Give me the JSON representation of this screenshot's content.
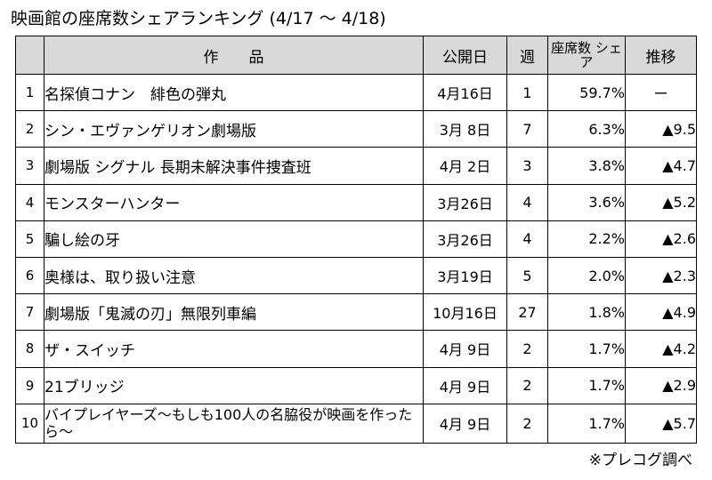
{
  "title": "映画館の座席数シェアランキング (4/17 〜 4/18)",
  "headers": {
    "rank": "",
    "title": "作　　品",
    "date": "公開日",
    "week": "週",
    "share": "座席数 シェア",
    "trend": "推移"
  },
  "rows": [
    {
      "rank": "1",
      "title": "名探偵コナン　緋色の弾丸",
      "date": "4月16日",
      "week": "1",
      "share": "59.7%",
      "trend": "ー"
    },
    {
      "rank": "2",
      "title": "シン・エヴァンゲリオン劇場版",
      "date": "3月 8日",
      "week": "7",
      "share": "6.3%",
      "trend": "▲9.5"
    },
    {
      "rank": "3",
      "title": "劇場版 シグナル 長期未解決事件捜査班",
      "date": "4月 2日",
      "week": "3",
      "share": "3.8%",
      "trend": "▲4.7"
    },
    {
      "rank": "4",
      "title": "モンスターハンター",
      "date": "3月26日",
      "week": "4",
      "share": "3.6%",
      "trend": "▲5.2"
    },
    {
      "rank": "5",
      "title": "騙し絵の牙",
      "date": "3月26日",
      "week": "4",
      "share": "2.2%",
      "trend": "▲2.6"
    },
    {
      "rank": "6",
      "title": "奥様は、取り扱い注意",
      "date": "3月19日",
      "week": "5",
      "share": "2.0%",
      "trend": "▲2.3"
    },
    {
      "rank": "7",
      "title": "劇場版「鬼滅の刃」無限列車編",
      "date": "10月16日",
      "week": "27",
      "share": "1.8%",
      "trend": "▲4.9"
    },
    {
      "rank": "8",
      "title": "ザ・スイッチ",
      "date": "4月 9日",
      "week": "2",
      "share": "1.7%",
      "trend": "▲4.2"
    },
    {
      "rank": "9",
      "title": "21ブリッジ",
      "date": "4月 9日",
      "week": "2",
      "share": "1.7%",
      "trend": "▲2.9"
    },
    {
      "rank": "10",
      "title": "バイプレイヤーズ〜もしも100人の名脇役が映画を作ったら〜",
      "date": "4月 9日",
      "week": "2",
      "share": "1.7%",
      "trend": "▲5.7"
    }
  ],
  "source": "※プレコグ調べ"
}
